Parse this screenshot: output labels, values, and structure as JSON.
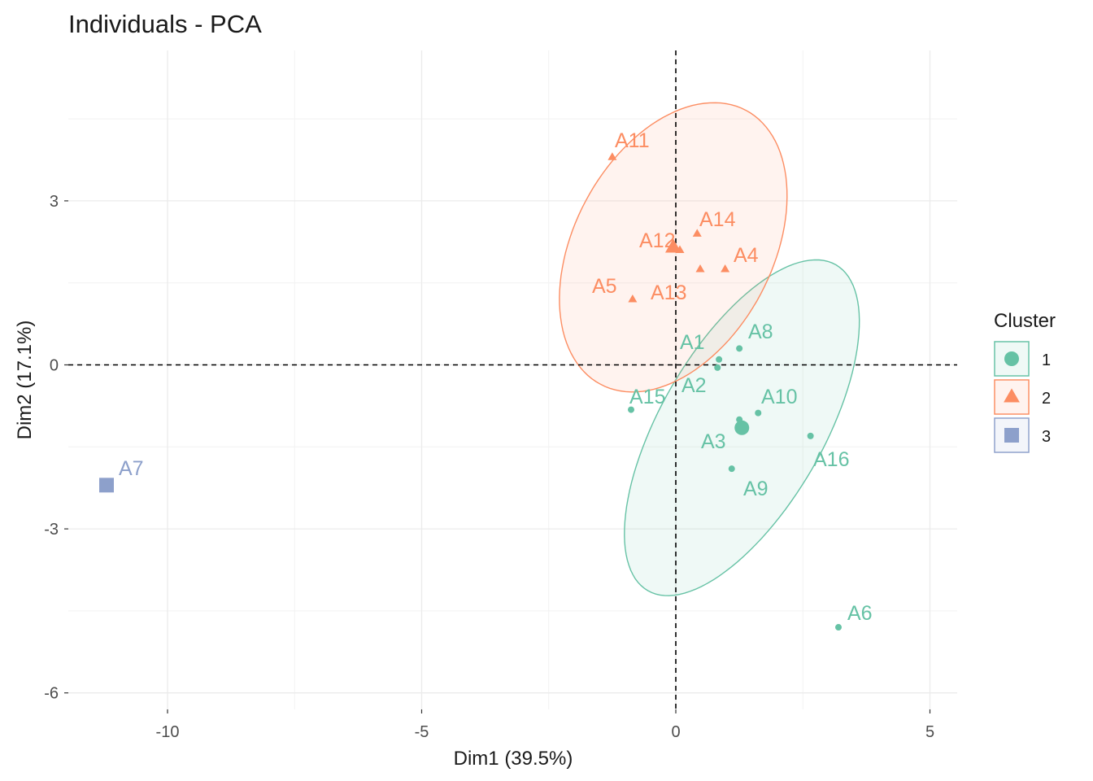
{
  "chart_data": {
    "type": "scatter",
    "title": "Individuals - PCA",
    "xlabel": "Dim1 (39.5%)",
    "ylabel": "Dim2 (17.1%)",
    "xlim": [
      -12,
      5.5
    ],
    "ylim": [
      -6.3,
      5.8
    ],
    "x_ticks": [
      -10,
      -5,
      0,
      5
    ],
    "x_tick_labels": [
      "-10",
      "-5",
      "0",
      "5"
    ],
    "y_ticks": [
      3,
      0,
      -3,
      -6
    ],
    "y_tick_labels": [
      "3",
      "0",
      "-3",
      "-6"
    ],
    "grid": true,
    "reference_lines": {
      "x": 0,
      "y": 0,
      "style": "dashed"
    },
    "legend": {
      "title": "Cluster",
      "placement": "right",
      "entries": [
        {
          "label": "1",
          "shape": "circle",
          "color": "#66c2a5"
        },
        {
          "label": "2",
          "shape": "triangle",
          "color": "#fc8d62"
        },
        {
          "label": "3",
          "shape": "square",
          "color": "#8da0cb"
        }
      ]
    },
    "series": [
      {
        "name": "1",
        "color": "#66c2a5",
        "shape": "circle",
        "centroid": {
          "x": 1.3,
          "y": -1.15
        },
        "points": [
          {
            "label": "A1",
            "x": 0.85,
            "y": 0.1
          },
          {
            "label": "A2",
            "x": 0.82,
            "y": -0.05
          },
          {
            "label": "A3",
            "x": 1.25,
            "y": -1.0
          },
          {
            "label": "A6",
            "x": 3.2,
            "y": -4.8
          },
          {
            "label": "A8",
            "x": 1.25,
            "y": 0.3
          },
          {
            "label": "A9",
            "x": 1.1,
            "y": -1.9
          },
          {
            "label": "A10",
            "x": 1.62,
            "y": -0.88
          },
          {
            "label": "A15",
            "x": -0.88,
            "y": -0.82
          },
          {
            "label": "A16",
            "x": 2.65,
            "y": -1.3
          }
        ],
        "ellipse": {
          "center": {
            "x": 1.3,
            "y": -1.15
          },
          "rx": 3.7,
          "ry": 1.6,
          "angle_deg": -60
        }
      },
      {
        "name": "2",
        "color": "#fc8d62",
        "shape": "triangle",
        "centroid": {
          "x": -0.05,
          "y": 2.15
        },
        "points": [
          {
            "label": "A4",
            "x": 0.97,
            "y": 1.75
          },
          {
            "label": "A5",
            "x": -0.85,
            "y": 1.2
          },
          {
            "label": "A11",
            "x": -1.25,
            "y": 3.8
          },
          {
            "label": "A12",
            "x": 0.08,
            "y": 2.1
          },
          {
            "label": "A13",
            "x": 0.48,
            "y": 1.75
          },
          {
            "label": "A14",
            "x": 0.42,
            "y": 2.4
          }
        ],
        "ellipse": {
          "center": {
            "x": -0.05,
            "y": 2.15
          },
          "rx": 3.05,
          "ry": 1.95,
          "angle_deg": -62
        }
      },
      {
        "name": "3",
        "color": "#8da0cb",
        "shape": "square",
        "points": [
          {
            "label": "A7",
            "x": -11.2,
            "y": -2.2
          }
        ]
      }
    ]
  }
}
